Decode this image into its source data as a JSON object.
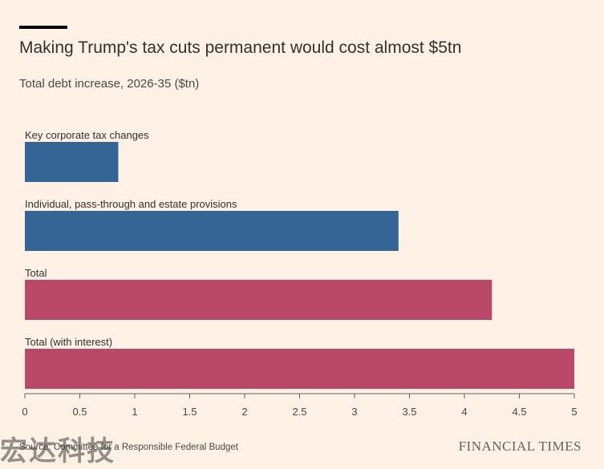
{
  "header": {
    "title": "Making Trump's tax cuts permanent would cost almost $5tn",
    "subtitle": "Total debt increase, 2026-35 ($tn)"
  },
  "footer": {
    "source": "Source: Committee for a Responsible Federal Budget",
    "brand": "FINANCIAL TIMES",
    "watermark": "宏达科技"
  },
  "colors": {
    "background": "#FFF1E5",
    "blue": "#356594",
    "claret": "#B94869",
    "axis": "#66605C"
  },
  "chart_data": {
    "type": "bar",
    "orientation": "horizontal",
    "title": "Making Trump's tax cuts permanent would cost almost $5tn",
    "subtitle": "Total debt increase, 2026-35 ($tn)",
    "categories": [
      "Key corporate tax changes",
      "Individual, pass-through and estate provisions",
      "Total",
      "Total (with interest)"
    ],
    "values": [
      0.85,
      3.4,
      4.25,
      5.0
    ],
    "bar_colors": [
      "#356594",
      "#356594",
      "#B94869",
      "#B94869"
    ],
    "xlim": [
      0,
      5
    ],
    "xticks": [
      0,
      0.5,
      1,
      1.5,
      2,
      2.5,
      3,
      3.5,
      4,
      4.5,
      5
    ],
    "xtick_labels": [
      "0",
      "0.5",
      "1",
      "1.5",
      "2",
      "2.5",
      "3",
      "3.5",
      "4",
      "4.5",
      "5"
    ],
    "xlabel": "",
    "ylabel": "",
    "grid": false,
    "legend": "none"
  }
}
